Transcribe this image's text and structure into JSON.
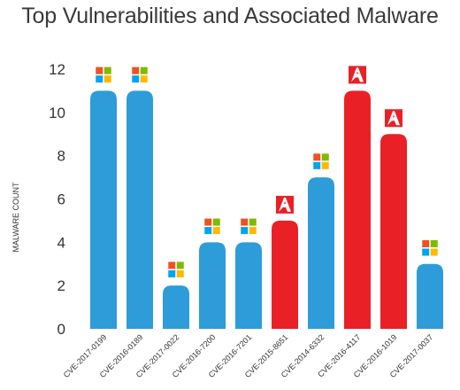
{
  "chart_data": {
    "type": "bar",
    "title": "Top Vulnerabilities and Associated Malware",
    "xlabel": "",
    "ylabel": "MALWARE COUNT",
    "ylim": [
      0,
      12
    ],
    "yticks": [
      "0",
      "2",
      "4",
      "6",
      "8",
      "10",
      "12"
    ],
    "grid": false,
    "legend": "none",
    "categories": [
      "CVE-2017-0199",
      "CVE-2016-0189",
      "CVE-2017-0022",
      "CVE-2016-7200",
      "CVE-2016-7201",
      "CVE-2015-8651",
      "CVE-2014-6332",
      "CVE-2016-4117",
      "CVE-2016-1019",
      "CVE-2017-0037"
    ],
    "values": [
      11,
      11,
      2,
      4,
      4,
      5,
      7,
      11,
      9,
      3
    ],
    "vendors": [
      "microsoft",
      "microsoft",
      "microsoft",
      "microsoft",
      "microsoft",
      "adobe",
      "microsoft",
      "adobe",
      "adobe",
      "microsoft"
    ],
    "colors": {
      "microsoft": "#2d9cd9",
      "adobe": "#ea2027"
    },
    "icons": {
      "microsoft": "windows-logo-icon",
      "adobe": "adobe-logo-icon"
    }
  }
}
